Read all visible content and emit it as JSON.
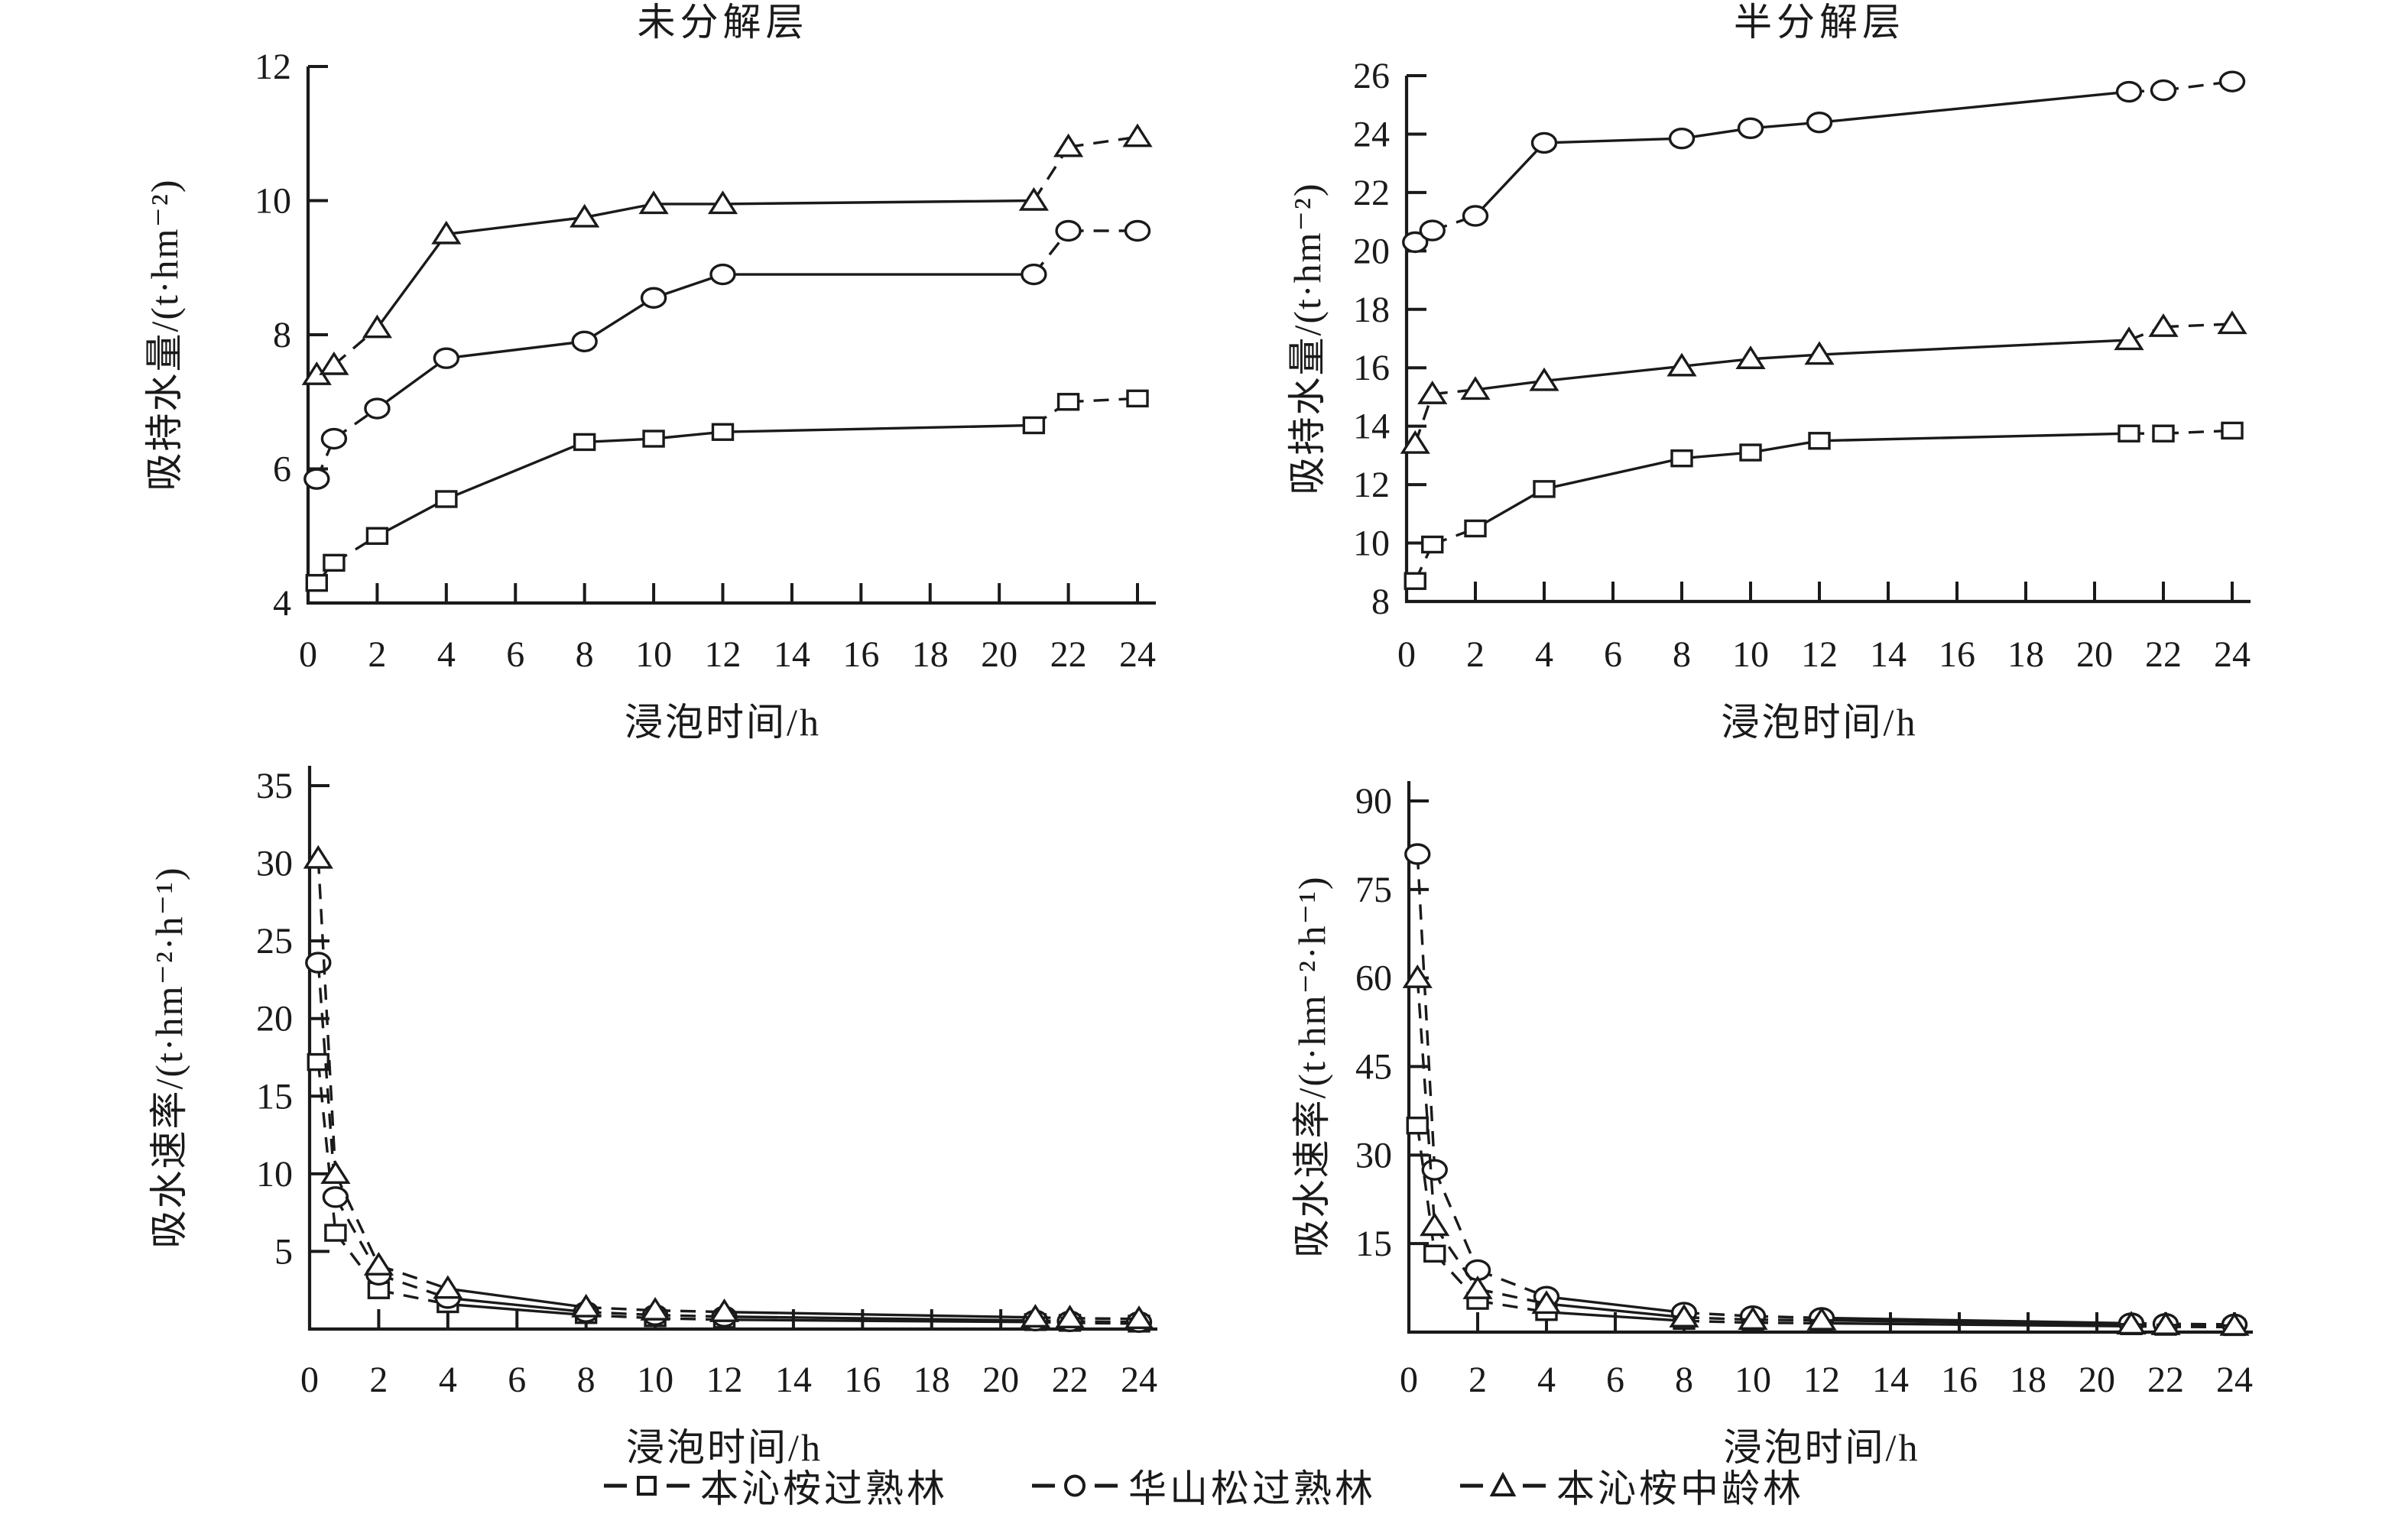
{
  "page": {
    "background": "#ffffff",
    "ink_color": "#1a1a1a",
    "marker_fill": "#ffffff"
  },
  "legend": {
    "items": [
      {
        "marker": "square",
        "label": "本沁桉过熟林"
      },
      {
        "marker": "circle",
        "label": "华山松过熟林"
      },
      {
        "marker": "triangle",
        "label": "本沁桉中龄林"
      }
    ]
  },
  "chart_data": [
    {
      "type": "line",
      "title": "未分解层",
      "xlabel": "浸泡时间/h",
      "ylabel": "吸持水量/(t·hm⁻²)",
      "xlim": [
        0,
        24
      ],
      "ylim": [
        4,
        12
      ],
      "xticks": [
        0,
        2,
        4,
        6,
        8,
        10,
        12,
        14,
        16,
        18,
        20,
        22,
        24
      ],
      "yticks": [
        4,
        6,
        8,
        10,
        12
      ],
      "grid": false,
      "x": [
        0.25,
        0.75,
        2,
        4,
        8,
        10,
        12,
        21,
        22,
        24
      ],
      "series": [
        {
          "name": "本沁桉过熟林",
          "marker": "square",
          "values": [
            4.3,
            4.6,
            5.0,
            5.55,
            6.4,
            6.45,
            6.55,
            6.65,
            7.0,
            7.05
          ]
        },
        {
          "name": "华山松过熟林",
          "marker": "circle",
          "values": [
            5.85,
            6.45,
            6.9,
            7.65,
            7.9,
            8.55,
            8.9,
            8.9,
            9.55,
            9.55
          ]
        },
        {
          "name": "本沁桉中龄林",
          "marker": "triangle",
          "values": [
            7.4,
            7.55,
            8.1,
            9.5,
            9.75,
            9.95,
            9.95,
            10.0,
            10.8,
            10.95
          ]
        }
      ]
    },
    {
      "type": "line",
      "title": "半分解层",
      "xlabel": "浸泡时间/h",
      "ylabel": "吸持水量/(t·hm⁻²)",
      "xlim": [
        0,
        24
      ],
      "ylim": [
        8,
        26
      ],
      "xticks": [
        0,
        2,
        4,
        6,
        8,
        10,
        12,
        14,
        16,
        18,
        20,
        22,
        24
      ],
      "yticks": [
        8,
        10,
        12,
        14,
        16,
        18,
        20,
        22,
        24,
        26
      ],
      "grid": false,
      "x": [
        0.25,
        0.75,
        2,
        4,
        8,
        10,
        12,
        21,
        22,
        24
      ],
      "series": [
        {
          "name": "本沁桉过熟林",
          "marker": "square",
          "values": [
            8.7,
            9.95,
            10.5,
            11.85,
            12.9,
            13.1,
            13.5,
            13.75,
            13.75,
            13.85
          ]
        },
        {
          "name": "华山松过熟林",
          "marker": "circle",
          "values": [
            20.3,
            20.7,
            21.2,
            23.7,
            23.85,
            24.2,
            24.4,
            25.45,
            25.5,
            25.8
          ]
        },
        {
          "name": "本沁桉中龄林",
          "marker": "triangle",
          "values": [
            13.4,
            15.1,
            15.25,
            15.55,
            16.05,
            16.3,
            16.45,
            16.95,
            17.4,
            17.5
          ]
        }
      ]
    },
    {
      "type": "line",
      "title": "",
      "xlabel": "浸泡时间/h",
      "ylabel": "吸水速率/(t·hm⁻²·h⁻¹)",
      "xlim": [
        0,
        24
      ],
      "ylim": [
        0,
        35
      ],
      "xticks": [
        0,
        2,
        4,
        6,
        8,
        10,
        12,
        14,
        16,
        18,
        20,
        22,
        24
      ],
      "yticks": [
        5,
        10,
        15,
        20,
        25,
        30,
        35
      ],
      "grid": false,
      "rate_chart": true,
      "x": [
        0.25,
        0.75,
        2,
        4,
        8,
        10,
        12,
        21,
        22,
        24
      ],
      "series": [
        {
          "name": "本沁桉过熟林",
          "marker": "square",
          "values": [
            17.2,
            6.2,
            2.5,
            1.6,
            0.9,
            0.7,
            0.6,
            0.45,
            0.4,
            0.35
          ]
        },
        {
          "name": "华山松过熟林",
          "marker": "circle",
          "values": [
            23.6,
            8.5,
            3.5,
            2.0,
            1.1,
            0.9,
            0.8,
            0.55,
            0.5,
            0.45
          ]
        },
        {
          "name": "本沁桉中龄林",
          "marker": "triangle",
          "values": [
            30.3,
            10.0,
            4.1,
            2.6,
            1.4,
            1.2,
            1.1,
            0.75,
            0.7,
            0.65
          ]
        }
      ]
    },
    {
      "type": "line",
      "title": "",
      "xlabel": "浸泡时间/h",
      "ylabel": "吸水速率/(t·hm⁻²·h⁻¹)",
      "xlim": [
        0,
        24
      ],
      "ylim": [
        0,
        90
      ],
      "xticks": [
        0,
        2,
        4,
        6,
        8,
        10,
        12,
        14,
        16,
        18,
        20,
        22,
        24
      ],
      "yticks": [
        15,
        30,
        45,
        60,
        75,
        90
      ],
      "grid": false,
      "rate_chart": true,
      "x": [
        0.25,
        0.75,
        2,
        4,
        8,
        10,
        12,
        21,
        22,
        24
      ],
      "series": [
        {
          "name": "本沁桉过熟林",
          "marker": "square",
          "values": [
            35.0,
            13.3,
            5.3,
            3.4,
            1.9,
            1.6,
            1.5,
            1.0,
            0.9,
            0.85
          ]
        },
        {
          "name": "华山松过熟林",
          "marker": "circle",
          "values": [
            81.0,
            27.5,
            10.5,
            6.0,
            3.3,
            2.7,
            2.4,
            1.5,
            1.4,
            1.3
          ]
        },
        {
          "name": "本沁桉中龄林",
          "marker": "triangle",
          "values": [
            60.0,
            18.0,
            7.3,
            4.8,
            2.5,
            2.1,
            2.0,
            1.3,
            1.2,
            1.1
          ]
        }
      ]
    }
  ]
}
